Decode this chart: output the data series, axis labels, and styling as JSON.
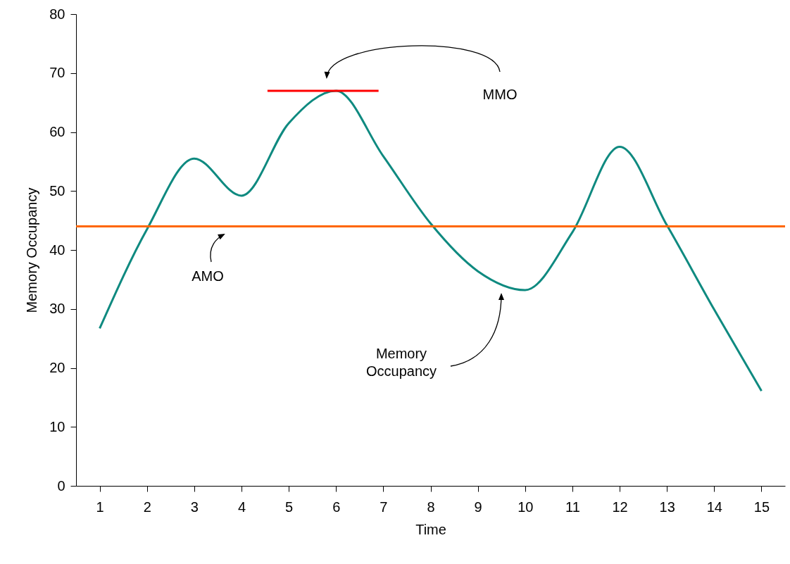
{
  "chart_data": {
    "type": "line",
    "xlabel": "Time",
    "ylabel": "Memory Occupancy",
    "x": [
      1,
      2,
      3,
      4,
      5,
      6,
      7,
      8,
      9,
      10,
      11,
      12,
      13,
      14,
      15
    ],
    "xlim": [
      0.5,
      15.5
    ],
    "xticks": [
      1,
      2,
      3,
      4,
      5,
      6,
      7,
      8,
      9,
      10,
      11,
      12,
      13,
      14,
      15
    ],
    "ylim": [
      0,
      80
    ],
    "yticks": [
      0,
      10,
      20,
      30,
      40,
      50,
      60,
      70,
      80
    ],
    "series": [
      {
        "color": "#0f8a80",
        "values": [
          26.7,
          43.5,
          55.5,
          49.2,
          61.5,
          67,
          55.9,
          44.5,
          36.4,
          33.2,
          43,
          57.5,
          44.2,
          29.9,
          16.1
        ]
      },
      {
        "type": "line",
        "color": "#ff0000",
        "x": [
          4.55,
          6.9
        ],
        "values": [
          67,
          67
        ]
      }
    ],
    "ref_lines": [
      {
        "axis": "y",
        "value": 44,
        "color": "#ff6600"
      }
    ],
    "annotations": [
      "MMO",
      "AMO",
      "Memory\nOccupancy"
    ],
    "grid": false,
    "marker": "none",
    "line_style": "solid"
  }
}
